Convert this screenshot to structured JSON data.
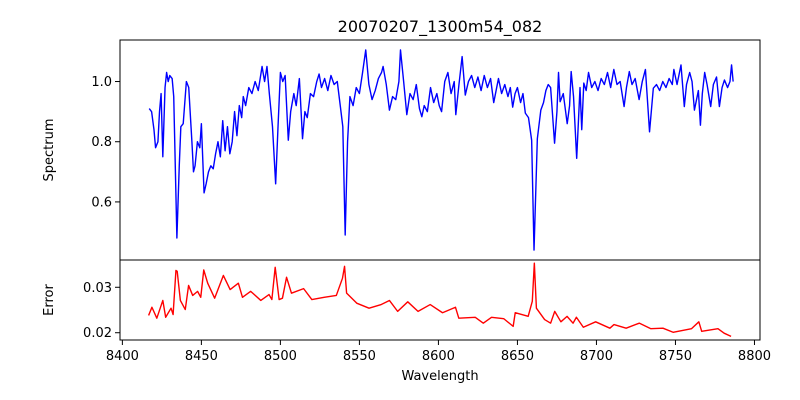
{
  "chart_data": [
    {
      "type": "line",
      "title": "20070207_1300m54_082",
      "xlabel": "",
      "ylabel": "Spectrum",
      "xlim": [
        8398.5,
        8803.5
      ],
      "ylim": [
        0.407,
        1.138
      ],
      "yticks": [
        0.6,
        0.8,
        1.0
      ],
      "ytick_labels": [
        "0.6",
        "0.8",
        "1.0"
      ],
      "grid": false,
      "series": [
        {
          "name": "Spectrum",
          "color": "#0000ff",
          "x": [
            8417,
            8418.5,
            8420,
            8421,
            8422.5,
            8423.5,
            8424.5,
            8425.6,
            8427,
            8428,
            8429,
            8430,
            8431.5,
            8432.5,
            8434.5,
            8436,
            8437,
            8438.5,
            8440.5,
            8442,
            8444,
            8445,
            8446,
            8447.5,
            8449,
            8450,
            8451.7,
            8453,
            8454.5,
            8456,
            8457.5,
            8459,
            8460.5,
            8462,
            8463.5,
            8465,
            8466.5,
            8468,
            8469.5,
            8471,
            8472.5,
            8474,
            8475.5,
            8476.5,
            8478,
            8480,
            8482,
            8484,
            8486,
            8488.4,
            8490,
            8491.5,
            8493,
            8495,
            8497,
            8498.5,
            8500,
            8501.5,
            8503,
            8505,
            8506.5,
            8508.5,
            8510,
            8512,
            8514,
            8515.5,
            8517,
            8519,
            8521,
            8523,
            8524.5,
            8526,
            8528,
            8530,
            8532,
            8534,
            8536,
            8538,
            8539.5,
            8541,
            8542.5,
            8544,
            8546,
            8548,
            8550,
            8552,
            8554,
            8556,
            8558,
            8560,
            8562,
            8564,
            8565,
            8567,
            8569,
            8571,
            8573,
            8575,
            8576,
            8578,
            8580,
            8582,
            8584,
            8586,
            8588,
            8589.5,
            8591,
            8593,
            8595,
            8597,
            8599,
            8600.5,
            8602,
            8604,
            8606,
            8608,
            8610,
            8611,
            8613,
            8615,
            8617,
            8619,
            8621,
            8623,
            8625,
            8627,
            8629,
            8631,
            8633,
            8635,
            8636.5,
            8638,
            8640,
            8642,
            8644,
            8645.5,
            8647,
            8648.5,
            8650,
            8652,
            8653.5,
            8655,
            8657,
            8659,
            8660.5,
            8662.6,
            8664.8,
            8666.5,
            8668,
            8669.5,
            8671,
            8673.5,
            8675,
            8676,
            8677,
            8679,
            8681.5,
            8683,
            8684,
            8685.5,
            8687.5,
            8689.6,
            8690.7,
            8692,
            8693.5,
            8695,
            8697,
            8699,
            8701,
            8703,
            8705,
            8707,
            8709,
            8711,
            8713,
            8715,
            8717.5,
            8719,
            8720.8,
            8722.5,
            8724.5,
            8727,
            8729,
            8731,
            8733.6,
            8736,
            8738,
            8740,
            8742,
            8744,
            8746,
            8748,
            8749,
            8751,
            8753.5,
            8755.6,
            8757,
            8759,
            8760.5,
            8762,
            8764.5,
            8765.8,
            8767,
            8768.5,
            8770,
            8772.3,
            8774,
            8776,
            8777.8,
            8779.5,
            8781,
            8783,
            8784.5,
            8785.5,
            8786.5
          ],
          "y": [
            0.91,
            0.9,
            0.84,
            0.78,
            0.8,
            0.9,
            0.96,
            0.75,
            0.98,
            1.03,
            1.0,
            1.02,
            1.01,
            0.95,
            0.48,
            0.72,
            0.85,
            0.86,
            1.0,
            0.98,
            0.8,
            0.7,
            0.72,
            0.8,
            0.78,
            0.86,
            0.63,
            0.66,
            0.7,
            0.72,
            0.71,
            0.76,
            0.8,
            0.75,
            0.87,
            0.77,
            0.85,
            0.76,
            0.8,
            0.9,
            0.82,
            0.92,
            0.88,
            0.95,
            0.92,
            0.98,
            0.96,
            1.0,
            0.97,
            1.05,
            1.0,
            1.05,
            0.96,
            0.85,
            0.66,
            0.85,
            1.03,
            1.0,
            1.02,
            0.805,
            0.9,
            0.96,
            0.92,
            1.01,
            0.81,
            0.9,
            0.88,
            0.96,
            0.95,
            1.0,
            1.025,
            0.98,
            1.01,
            0.97,
            1.02,
            0.99,
            1.0,
            0.915,
            0.85,
            0.49,
            0.8,
            0.95,
            0.92,
            0.98,
            0.96,
            1.03,
            1.105,
            0.99,
            0.94,
            0.97,
            1.01,
            1.03,
            1.05,
            0.99,
            0.905,
            0.95,
            0.94,
            1.0,
            1.105,
            1.0,
            0.89,
            0.96,
            0.94,
            0.99,
            0.91,
            0.883,
            0.92,
            0.9,
            0.98,
            0.93,
            0.96,
            0.92,
            0.9,
            1.0,
            1.03,
            0.96,
            1.0,
            0.89,
            0.99,
            1.083,
            0.955,
            1.0,
            1.02,
            0.98,
            1.015,
            0.97,
            1.02,
            0.98,
            1.01,
            0.93,
            0.97,
            1.01,
            0.96,
            0.99,
            0.95,
            0.98,
            0.915,
            0.96,
            0.98,
            0.93,
            0.96,
            0.895,
            0.88,
            0.805,
            0.44,
            0.81,
            0.905,
            0.93,
            0.97,
            0.99,
            0.98,
            0.795,
            0.9,
            1.03,
            0.933,
            0.96,
            0.86,
            0.92,
            1.033,
            0.95,
            0.745,
            0.98,
            0.84,
            0.995,
            0.97,
            1.03,
            0.98,
            1.0,
            0.97,
            1.01,
            0.99,
            1.03,
            0.98,
            1.04,
            0.99,
            1.0,
            0.917,
            0.98,
            1.033,
            0.99,
            1.01,
            0.94,
            1.0,
            1.04,
            0.833,
            0.978,
            0.99,
            0.97,
            1.0,
            0.98,
            1.01,
            0.99,
            1.04,
            0.99,
            1.055,
            0.917,
            0.99,
            1.03,
            1.0,
            0.905,
            0.97,
            0.855,
            0.96,
            1.03,
            0.99,
            0.917,
            0.99,
            1.015,
            0.917,
            0.98,
            1.005,
            0.98,
            1.0,
            1.055,
            1.0
          ]
        }
      ]
    },
    {
      "type": "line",
      "title": "",
      "xlabel": "Wavelength",
      "ylabel": "Error",
      "xlim": [
        8398.5,
        8803.5
      ],
      "ylim": [
        0.0184,
        0.036
      ],
      "xticks": [
        8400,
        8450,
        8500,
        8550,
        8600,
        8650,
        8700,
        8750,
        8800
      ],
      "xtick_labels": [
        "8400",
        "8450",
        "8500",
        "8550",
        "8600",
        "8650",
        "8700",
        "8750",
        "8800"
      ],
      "yticks": [
        0.02,
        0.03
      ],
      "ytick_labels": [
        "0.02",
        "0.03"
      ],
      "grid": false,
      "series": [
        {
          "name": "Error",
          "color": "#ff0000",
          "x": [
            8416.6,
            8418.7,
            8421.8,
            8425.6,
            8427.4,
            8430.8,
            8432.1,
            8433.9,
            8434.7,
            8436.7,
            8439.8,
            8441.9,
            8444.5,
            8447.6,
            8449.6,
            8451.5,
            8454.0,
            8458.4,
            8460.5,
            8463.9,
            8468.2,
            8473.4,
            8476.0,
            8481.2,
            8487.6,
            8492.8,
            8494.6,
            8496.7,
            8499.2,
            8501.3,
            8503.9,
            8507.0,
            8514.7,
            8519.9,
            8527.7,
            8535.4,
            8539.3,
            8540.6,
            8541.9,
            8548.3,
            8556.1,
            8563.8,
            8569.0,
            8574.2,
            8580.6,
            8587.1,
            8594.8,
            8602.6,
            8610.8,
            8612.9,
            8623.3,
            8628.4,
            8633.6,
            8641.3,
            8647.3,
            8648.6,
            8656.8,
            8659.4,
            8660.7,
            8662.0,
            8667.2,
            8671.0,
            8673.6,
            8677.5,
            8681.4,
            8685.2,
            8687.3,
            8691.7,
            8699.5,
            8708.5,
            8711.1,
            8718.8,
            8727.1,
            8734.3,
            8742.1,
            8748.5,
            8760.2,
            8764.8,
            8766.6,
            8776.9,
            8780.8,
            8785.2
          ],
          "y": [
            0.0238,
            0.0256,
            0.0232,
            0.0271,
            0.0234,
            0.0254,
            0.024,
            0.0337,
            0.0335,
            0.0271,
            0.0251,
            0.0304,
            0.0282,
            0.0291,
            0.0278,
            0.0338,
            0.0309,
            0.0276,
            0.0295,
            0.0326,
            0.0295,
            0.0309,
            0.0278,
            0.0291,
            0.0271,
            0.0284,
            0.0273,
            0.0344,
            0.0273,
            0.0276,
            0.0322,
            0.0287,
            0.0297,
            0.0273,
            0.0278,
            0.0282,
            0.032,
            0.0346,
            0.0287,
            0.0265,
            0.0254,
            0.0262,
            0.0271,
            0.0247,
            0.0268,
            0.0247,
            0.0262,
            0.0244,
            0.0256,
            0.0232,
            0.0234,
            0.0221,
            0.0234,
            0.0231,
            0.0214,
            0.0244,
            0.0236,
            0.0269,
            0.0353,
            0.0254,
            0.0229,
            0.0221,
            0.0247,
            0.0224,
            0.0236,
            0.0221,
            0.0234,
            0.0212,
            0.0224,
            0.021,
            0.0218,
            0.021,
            0.0221,
            0.0209,
            0.021,
            0.0201,
            0.0209,
            0.0224,
            0.0203,
            0.0209,
            0.0199,
            0.0192
          ]
        }
      ]
    }
  ]
}
